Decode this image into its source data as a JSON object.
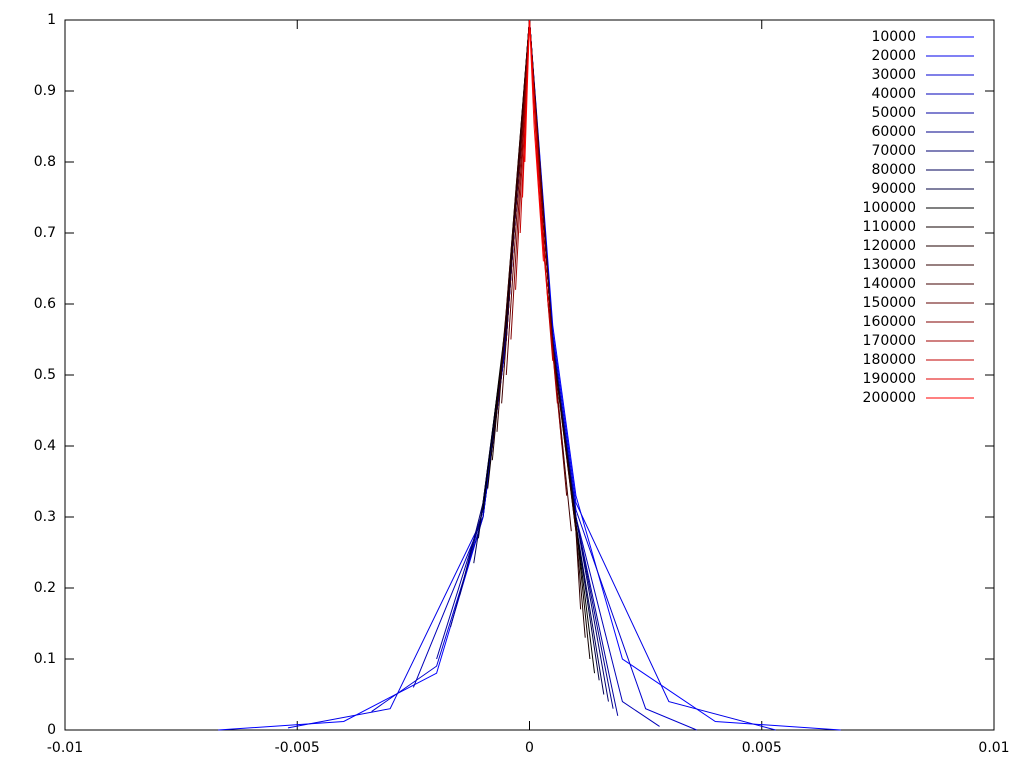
{
  "chart_data": {
    "type": "line",
    "xlim": [
      -0.01,
      0.01
    ],
    "ylim": [
      0,
      1
    ],
    "xticks": [
      -0.01,
      -0.005,
      0,
      0.005,
      0.01
    ],
    "yticks": [
      0,
      0.1,
      0.2,
      0.3,
      0.4,
      0.5,
      0.6,
      0.7,
      0.8,
      0.9,
      1
    ],
    "legend": "top-right",
    "series": [
      {
        "name": "10000",
        "color": "#0000ff",
        "x": [
          -0.0067,
          -0.004,
          -0.002,
          -0.001,
          -0.0005,
          0,
          0.0005,
          0.001,
          0.002,
          0.004,
          0.0067
        ],
        "values": [
          0,
          0.012,
          0.08,
          0.3,
          0.55,
          1,
          0.57,
          0.33,
          0.1,
          0.012,
          0
        ]
      },
      {
        "name": "20000",
        "color": "#0000e8",
        "x": [
          -0.0052,
          -0.003,
          -0.001,
          -0.0005,
          0,
          0.0005,
          0.001,
          0.003,
          0.0053
        ],
        "values": [
          0.003,
          0.03,
          0.3,
          0.55,
          1,
          0.56,
          0.32,
          0.04,
          0
        ]
      },
      {
        "name": "30000",
        "color": "#0000d0",
        "x": [
          -0.0034,
          -0.002,
          -0.001,
          -0.0005,
          0,
          0.0005,
          0.001,
          0.0025,
          0.0036
        ],
        "values": [
          0.026,
          0.09,
          0.3,
          0.55,
          1,
          0.55,
          0.31,
          0.03,
          0
        ]
      },
      {
        "name": "40000",
        "color": "#0000b8",
        "x": [
          -0.0025,
          -0.001,
          -0.0005,
          0,
          0.0005,
          0.001,
          0.002,
          0.0028
        ],
        "values": [
          0.06,
          0.3,
          0.55,
          1,
          0.55,
          0.3,
          0.04,
          0.005
        ]
      },
      {
        "name": "50000",
        "color": "#0000a0",
        "x": [
          -0.002,
          -0.001,
          -0.0005,
          0,
          0.0005,
          0.001,
          0.0019
        ],
        "values": [
          0.1,
          0.31,
          0.55,
          1,
          0.55,
          0.3,
          0.02
        ]
      },
      {
        "name": "60000",
        "color": "#000088",
        "x": [
          -0.0017,
          -0.001,
          -0.0005,
          0,
          0.0005,
          0.001,
          0.0018
        ],
        "values": [
          0.145,
          0.31,
          0.56,
          1,
          0.55,
          0.3,
          0.03
        ]
      },
      {
        "name": "70000",
        "color": "#000070",
        "x": [
          -0.0015,
          -0.001,
          -0.0005,
          0,
          0.0005,
          0.001,
          0.0017
        ],
        "values": [
          0.19,
          0.32,
          0.56,
          1,
          0.54,
          0.3,
          0.04
        ]
      },
      {
        "name": "80000",
        "color": "#000058",
        "x": [
          -0.0012,
          -0.001,
          -0.0005,
          0,
          0.0005,
          0.001,
          0.0016
        ],
        "values": [
          0.235,
          0.32,
          0.57,
          1,
          0.54,
          0.29,
          0.05
        ]
      },
      {
        "name": "90000",
        "color": "#000040",
        "x": [
          -0.0011,
          -0.0005,
          0,
          0.0005,
          0.001,
          0.0015
        ],
        "values": [
          0.27,
          0.57,
          1,
          0.54,
          0.29,
          0.07
        ]
      },
      {
        "name": "100000",
        "color": "#000000",
        "x": [
          -0.001,
          -0.0005,
          0,
          0.0005,
          0.001,
          0.0014
        ],
        "values": [
          0.31,
          0.58,
          1,
          0.54,
          0.29,
          0.08
        ]
      },
      {
        "name": "110000",
        "color": "#100000",
        "x": [
          -0.0009,
          -0.0005,
          0,
          0.0005,
          0.001,
          0.0013
        ],
        "values": [
          0.34,
          0.58,
          1,
          0.54,
          0.29,
          0.1
        ]
      },
      {
        "name": "120000",
        "color": "#200000",
        "x": [
          -0.0008,
          -0.0005,
          0,
          0.0005,
          0.001,
          0.0012
        ],
        "values": [
          0.38,
          0.59,
          1,
          0.54,
          0.28,
          0.13
        ]
      },
      {
        "name": "130000",
        "color": "#300000",
        "x": [
          -0.0007,
          -0.0005,
          0,
          0.0005,
          0.001,
          0.0011
        ],
        "values": [
          0.42,
          0.59,
          1,
          0.54,
          0.28,
          0.17
        ]
      },
      {
        "name": "140000",
        "color": "#400000",
        "x": [
          -0.0006,
          0,
          0.0005,
          0.0009
        ],
        "values": [
          0.46,
          1,
          0.54,
          0.28
        ]
      },
      {
        "name": "150000",
        "color": "#600000",
        "x": [
          -0.0005,
          0,
          0.0005,
          0.0008
        ],
        "values": [
          0.5,
          1,
          0.54,
          0.33
        ]
      },
      {
        "name": "160000",
        "color": "#800000",
        "x": [
          -0.0004,
          0,
          0.0004,
          0.0007
        ],
        "values": [
          0.55,
          1,
          0.6,
          0.4
        ]
      },
      {
        "name": "170000",
        "color": "#a00000",
        "x": [
          -0.0003,
          0,
          0.0003,
          0.0006
        ],
        "values": [
          0.62,
          1,
          0.68,
          0.46
        ]
      },
      {
        "name": "180000",
        "color": "#c00000",
        "x": [
          -0.0002,
          0,
          0.0002,
          0.0005
        ],
        "values": [
          0.7,
          1,
          0.76,
          0.52
        ]
      },
      {
        "name": "190000",
        "color": "#e00000",
        "x": [
          -0.00015,
          0,
          0.0002,
          0.0004
        ],
        "values": [
          0.75,
          1,
          0.78,
          0.6
        ]
      },
      {
        "name": "200000",
        "color": "#ff0000",
        "x": [
          -0.0001,
          0,
          0.0001,
          0.0003
        ],
        "values": [
          0.8,
          1,
          0.85,
          0.66
        ]
      }
    ]
  }
}
